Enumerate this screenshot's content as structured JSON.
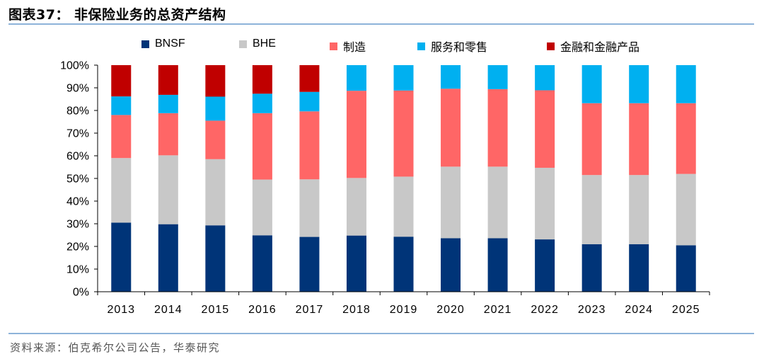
{
  "header": {
    "title": "图表37：  非保险业务的总资产结构"
  },
  "footer": {
    "source": "资料来源：伯克希尔公司公告，华泰研究"
  },
  "chart_data": {
    "type": "bar",
    "stacked": true,
    "title": "",
    "xlabel": "",
    "ylabel": "",
    "ylim": [
      0,
      100
    ],
    "y_ticks": [
      "0%",
      "10%",
      "20%",
      "30%",
      "40%",
      "50%",
      "60%",
      "70%",
      "80%",
      "90%",
      "100%"
    ],
    "y_tick_values": [
      0,
      10,
      20,
      30,
      40,
      50,
      60,
      70,
      80,
      90,
      100
    ],
    "grid": false,
    "legend_placement": "top",
    "categories": [
      "2013",
      "2014",
      "2015",
      "2016",
      "2017",
      "2018",
      "2019",
      "2020",
      "2021",
      "2022",
      "2023",
      "2024",
      "2025"
    ],
    "series": [
      {
        "name": "BNSF",
        "color": "#003478",
        "values": [
          30.5,
          29.8,
          29.3,
          24.9,
          24.2,
          24.8,
          24.3,
          23.6,
          23.6,
          23.1,
          21.0,
          21.0,
          20.5
        ]
      },
      {
        "name": "BHE",
        "color": "#c8c8c8",
        "values": [
          28.5,
          30.4,
          29.2,
          24.6,
          25.4,
          25.4,
          26.5,
          31.6,
          31.6,
          31.6,
          30.5,
          30.5,
          31.5
        ]
      },
      {
        "name": "制造",
        "color": "#ff6666",
        "values": [
          19.0,
          18.6,
          17.0,
          29.3,
          30.0,
          38.5,
          38.0,
          34.4,
          34.2,
          34.2,
          31.7,
          31.7,
          31.2
        ]
      },
      {
        "name": "服务和零售",
        "color": "#00b0f0",
        "values": [
          8.2,
          8.1,
          10.6,
          8.6,
          8.6,
          11.3,
          11.2,
          10.4,
          10.6,
          11.1,
          16.8,
          16.8,
          16.8
        ]
      },
      {
        "name": "金融和金融产品",
        "color": "#c00000",
        "values": [
          13.8,
          13.1,
          13.9,
          12.6,
          11.8,
          0,
          0,
          0,
          0,
          0,
          0,
          0,
          0
        ]
      }
    ]
  }
}
